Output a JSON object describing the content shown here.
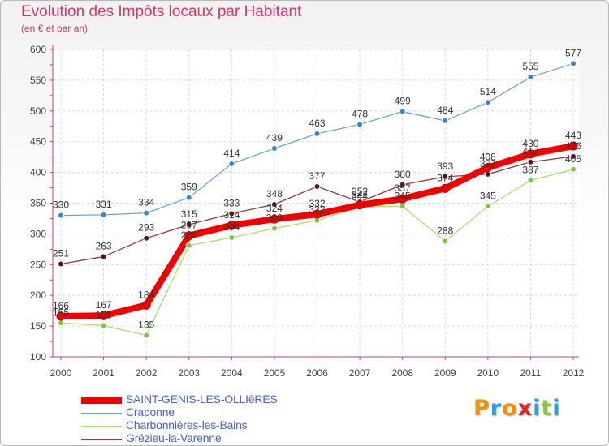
{
  "title": "Evolution des Impôts locaux par Habitant",
  "subtitle": "(en € et par an)",
  "logo": [
    "P",
    "r",
    "o",
    "x",
    "i",
    "t",
    "i"
  ],
  "logo_colors": [
    "#f39200",
    "#2a9fd6",
    "#f39200",
    "#e52421",
    "#2a9fd6",
    "#8cc63f",
    "#2a9fd6"
  ],
  "chart_data": {
    "type": "line",
    "title": "Evolution des Impôts locaux par Habitant",
    "subtitle": "(en € et par an)",
    "xlabel": "",
    "ylabel": "",
    "x": [
      "2000",
      "2001",
      "2002",
      "2003",
      "2004",
      "2005",
      "2006",
      "2007",
      "2008",
      "2009",
      "2010",
      "2011",
      "2012"
    ],
    "ylim": [
      100,
      600
    ],
    "yticks": [
      "100",
      "150",
      "200",
      "250",
      "300",
      "350",
      "400",
      "450",
      "500",
      "550",
      "600"
    ],
    "grid": true,
    "legend_position": "bottom-left",
    "series": [
      {
        "name": "Craponne",
        "color": "#6ea3d8",
        "point_color": "#3a86c8",
        "values": [
          330,
          331,
          334,
          359,
          414,
          439,
          463,
          478,
          499,
          484,
          514,
          555,
          577
        ],
        "labels": [
          "330",
          "331",
          "334",
          "359",
          "414",
          "439",
          "463",
          "478",
          "499",
          "484",
          "514",
          "555",
          "577"
        ]
      },
      {
        "name": "Grézieu-la-Varenne",
        "color": "#8e3a3a",
        "point_color": "#5a1616",
        "values": [
          251,
          263,
          293,
          315,
          333,
          348,
          377,
          352,
          380,
          393,
          397,
          417,
          426
        ],
        "labels": [
          "251",
          "263",
          "293",
          "315",
          "333",
          "348",
          "377",
          "352",
          "380",
          "393",
          "397",
          "417",
          "426"
        ]
      },
      {
        "name": "Charbonnières-les-Bains",
        "color": "#a6e06e",
        "point_color": "#7cc540",
        "values": [
          155,
          151,
          135,
          281,
          294,
          309,
          322,
          344,
          345,
          288,
          345,
          387,
          405
        ],
        "labels": [
          "155",
          "151",
          "135",
          "281",
          "294",
          "309",
          "322",
          "344",
          "345",
          "288",
          "345",
          "387",
          "405"
        ]
      },
      {
        "name": "SAINT-GENIS-LES-OLLIèRES",
        "color": "#f20000",
        "point_color": "#f20000",
        "values": [
          166,
          167,
          184,
          297,
          314,
          324,
          332,
          347,
          357,
          374,
          408,
          430,
          443
        ],
        "labels": [
          "166",
          "167",
          "184",
          "297",
          "314",
          "324",
          "332",
          "347",
          "357",
          "374",
          "408",
          "430",
          "443"
        ]
      }
    ]
  },
  "legend": [
    {
      "name": "SAINT-GENIS-LES-OLLIèRES",
      "color": "#f20000"
    },
    {
      "name": "Craponne",
      "color": "#6ea3d8"
    },
    {
      "name": "Charbonnières-les-Bains",
      "color": "#a6e06e"
    },
    {
      "name": "Grézieu-la-Varenne",
      "color": "#8e3a3a"
    }
  ]
}
